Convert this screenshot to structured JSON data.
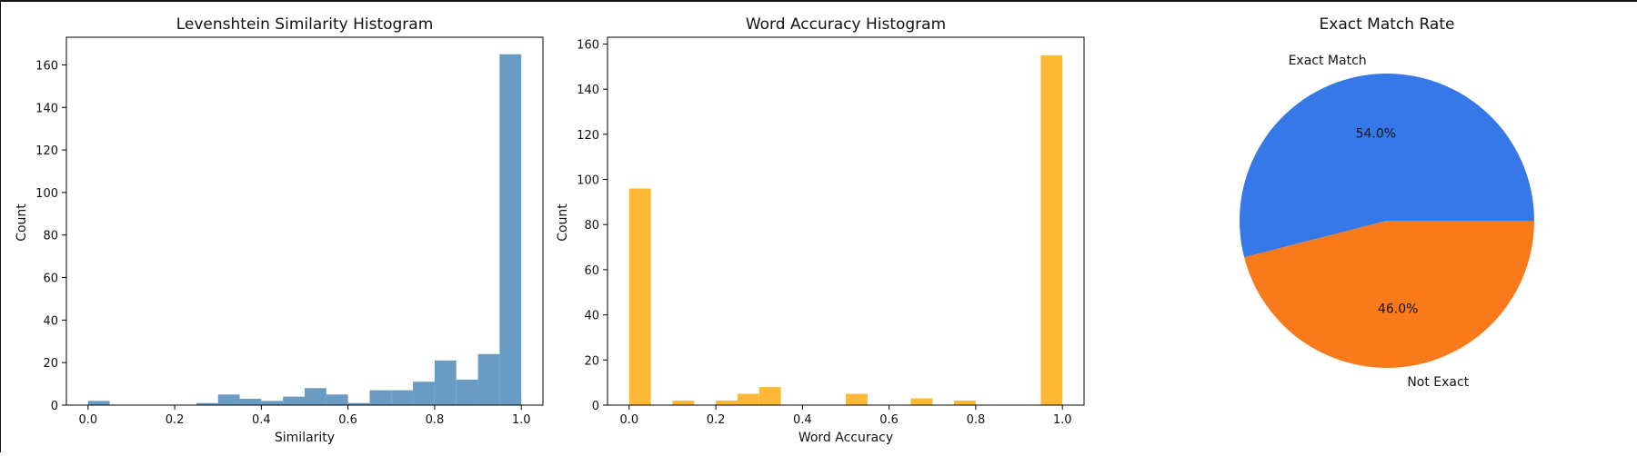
{
  "chart_data": [
    {
      "type": "bar",
      "title": "Levenshtein Similarity Histogram",
      "xlabel": "Similarity",
      "ylabel": "Count",
      "xlim": [
        -0.05,
        1.05
      ],
      "ylim": [
        0,
        173
      ],
      "xticks": [
        "0.0",
        "0.2",
        "0.4",
        "0.6",
        "0.8",
        "1.0"
      ],
      "yticks": [
        "0",
        "20",
        "40",
        "60",
        "80",
        "100",
        "120",
        "140",
        "160"
      ],
      "color": "#6a9bc3",
      "bins": [
        {
          "x0": 0.0,
          "x1": 0.05,
          "count": 2
        },
        {
          "x0": 0.05,
          "x1": 0.1,
          "count": 0
        },
        {
          "x0": 0.1,
          "x1": 0.15,
          "count": 0
        },
        {
          "x0": 0.15,
          "x1": 0.2,
          "count": 0
        },
        {
          "x0": 0.2,
          "x1": 0.25,
          "count": 0
        },
        {
          "x0": 0.25,
          "x1": 0.3,
          "count": 1
        },
        {
          "x0": 0.3,
          "x1": 0.35,
          "count": 5
        },
        {
          "x0": 0.35,
          "x1": 0.4,
          "count": 3
        },
        {
          "x0": 0.4,
          "x1": 0.45,
          "count": 2
        },
        {
          "x0": 0.45,
          "x1": 0.5,
          "count": 4
        },
        {
          "x0": 0.5,
          "x1": 0.55,
          "count": 8
        },
        {
          "x0": 0.55,
          "x1": 0.6,
          "count": 5
        },
        {
          "x0": 0.6,
          "x1": 0.65,
          "count": 1
        },
        {
          "x0": 0.65,
          "x1": 0.7,
          "count": 7
        },
        {
          "x0": 0.7,
          "x1": 0.75,
          "count": 7
        },
        {
          "x0": 0.75,
          "x1": 0.8,
          "count": 11
        },
        {
          "x0": 0.8,
          "x1": 0.85,
          "count": 21
        },
        {
          "x0": 0.85,
          "x1": 0.9,
          "count": 12
        },
        {
          "x0": 0.9,
          "x1": 0.95,
          "count": 24
        },
        {
          "x0": 0.95,
          "x1": 1.0,
          "count": 165
        }
      ]
    },
    {
      "type": "bar",
      "title": "Word Accuracy Histogram",
      "xlabel": "Word Accuracy",
      "ylabel": "Count",
      "xlim": [
        -0.05,
        1.05
      ],
      "ylim": [
        0,
        163
      ],
      "xticks": [
        "0.0",
        "0.2",
        "0.4",
        "0.6",
        "0.8",
        "1.0"
      ],
      "yticks": [
        "0",
        "20",
        "40",
        "60",
        "80",
        "100",
        "120",
        "140",
        "160"
      ],
      "color": "#ffb833",
      "bins": [
        {
          "x0": 0.0,
          "x1": 0.05,
          "count": 96
        },
        {
          "x0": 0.05,
          "x1": 0.1,
          "count": 0
        },
        {
          "x0": 0.1,
          "x1": 0.15,
          "count": 2
        },
        {
          "x0": 0.15,
          "x1": 0.2,
          "count": 0
        },
        {
          "x0": 0.2,
          "x1": 0.25,
          "count": 2
        },
        {
          "x0": 0.25,
          "x1": 0.3,
          "count": 5
        },
        {
          "x0": 0.3,
          "x1": 0.35,
          "count": 8
        },
        {
          "x0": 0.35,
          "x1": 0.4,
          "count": 0
        },
        {
          "x0": 0.4,
          "x1": 0.45,
          "count": 0
        },
        {
          "x0": 0.45,
          "x1": 0.5,
          "count": 0
        },
        {
          "x0": 0.5,
          "x1": 0.55,
          "count": 5
        },
        {
          "x0": 0.55,
          "x1": 0.6,
          "count": 0
        },
        {
          "x0": 0.6,
          "x1": 0.65,
          "count": 0
        },
        {
          "x0": 0.65,
          "x1": 0.7,
          "count": 3
        },
        {
          "x0": 0.7,
          "x1": 0.75,
          "count": 0
        },
        {
          "x0": 0.75,
          "x1": 0.8,
          "count": 2
        },
        {
          "x0": 0.8,
          "x1": 0.85,
          "count": 0
        },
        {
          "x0": 0.85,
          "x1": 0.9,
          "count": 0
        },
        {
          "x0": 0.9,
          "x1": 0.95,
          "count": 0
        },
        {
          "x0": 0.95,
          "x1": 1.0,
          "count": 155
        }
      ]
    },
    {
      "type": "pie",
      "title": "Exact Match Rate",
      "slices": [
        {
          "label": "Exact Match",
          "value": 54.0,
          "pct_label": "54.0%",
          "color": "#3778e8"
        },
        {
          "label": "Not Exact",
          "value": 46.0,
          "pct_label": "46.0%",
          "color": "#f97a1a"
        }
      ]
    }
  ]
}
